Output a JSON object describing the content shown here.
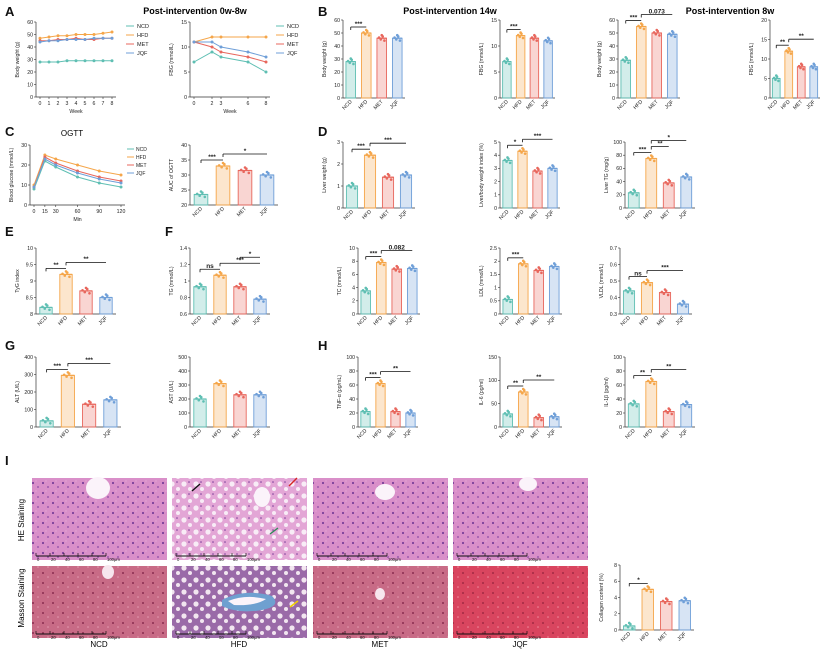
{
  "panel_titles": {
    "A": "Post-intervention 0w-8w",
    "B1": "Post-intervention 14w",
    "B2": "Post-intervention 8w",
    "C": "OGTT"
  },
  "groups": [
    "NCD",
    "HFD",
    "MET",
    "JQF"
  ],
  "colors": {
    "NCD": "#5fbfb3",
    "HFD": "#f5a64a",
    "MET": "#e8675d",
    "JQF": "#6f9fd8"
  },
  "chart_data": [
    {
      "id": "A1",
      "type": "line",
      "panel": "A",
      "xlabel": "Week",
      "ylabel": "Body weight (g)",
      "x": [
        0,
        1,
        2,
        3,
        4,
        5,
        6,
        7,
        8
      ],
      "ylim": [
        0,
        60
      ],
      "yticks": [
        0,
        10,
        20,
        30,
        40,
        50,
        60
      ],
      "series": [
        {
          "name": "NCD",
          "values": [
            28,
            28,
            28,
            29,
            29,
            29,
            29,
            29,
            29
          ]
        },
        {
          "name": "HFD",
          "values": [
            47,
            48,
            49,
            49,
            50,
            50,
            50,
            51,
            52
          ]
        },
        {
          "name": "MET",
          "values": [
            45,
            45,
            46,
            46,
            47,
            46,
            46,
            47,
            47
          ]
        },
        {
          "name": "JQF",
          "values": [
            44,
            45,
            45,
            46,
            46,
            46,
            47,
            47,
            47
          ]
        }
      ]
    },
    {
      "id": "A2",
      "type": "line",
      "panel": "A",
      "xlabel": "Week",
      "ylabel": "FBG (mmol/L)",
      "x": [
        0,
        2,
        3,
        6,
        8
      ],
      "ylim": [
        0,
        15
      ],
      "yticks": [
        0,
        5,
        10,
        15
      ],
      "series": [
        {
          "name": "NCD",
          "values": [
            7,
            9,
            8,
            7,
            5
          ]
        },
        {
          "name": "HFD",
          "values": [
            11,
            12,
            12,
            12,
            12
          ]
        },
        {
          "name": "MET",
          "values": [
            11,
            10,
            9,
            8,
            7
          ]
        },
        {
          "name": "JQF",
          "values": [
            11,
            11,
            10,
            9,
            8
          ]
        }
      ]
    },
    {
      "id": "B1",
      "type": "bar",
      "panel": "B",
      "ylabel": "Body weight (g)",
      "ylim": [
        0,
        60
      ],
      "yticks": [
        0,
        10,
        20,
        30,
        40,
        50,
        60
      ],
      "values": [
        28,
        50,
        46,
        46
      ],
      "sig": [
        {
          "from": 0,
          "to": 1,
          "label": "***"
        }
      ]
    },
    {
      "id": "B2",
      "type": "bar",
      "ylabel": "FBG (mmol/L)",
      "ylim": [
        0,
        15
      ],
      "yticks": [
        0,
        5,
        10,
        15
      ],
      "values": [
        7,
        12,
        11.5,
        11
      ],
      "sig": [
        {
          "from": 0,
          "to": 1,
          "label": "***"
        }
      ]
    },
    {
      "id": "B3",
      "type": "bar",
      "ylabel": "Body weight (g)",
      "ylim": [
        0,
        60
      ],
      "yticks": [
        0,
        10,
        20,
        30,
        40,
        50,
        60
      ],
      "values": [
        29,
        55,
        50,
        49
      ],
      "sig": [
        {
          "from": 0,
          "to": 1,
          "label": "***"
        },
        {
          "from": 1,
          "to": 3,
          "label": "0.073"
        }
      ]
    },
    {
      "id": "B4",
      "type": "bar",
      "ylabel": "FBG (mmol/L)",
      "ylim": [
        0,
        20
      ],
      "yticks": [
        0,
        5,
        10,
        15,
        20
      ],
      "values": [
        5,
        12,
        8,
        8
      ],
      "sig": [
        {
          "from": 0,
          "to": 1,
          "label": "**"
        },
        {
          "from": 1,
          "to": 3,
          "label": "**"
        }
      ]
    },
    {
      "id": "C1",
      "type": "line",
      "panel": "C",
      "xlabel": "Min",
      "ylabel": "Blood glucose (mmol/L)",
      "x": [
        0,
        15,
        30,
        60,
        90,
        120
      ],
      "ylim": [
        0,
        30
      ],
      "yticks": [
        0,
        10,
        20,
        30
      ],
      "series": [
        {
          "name": "NCD",
          "values": [
            8,
            22,
            19,
            14,
            11,
            9
          ]
        },
        {
          "name": "HFD",
          "values": [
            10,
            25,
            23,
            20,
            17,
            15
          ]
        },
        {
          "name": "MET",
          "values": [
            9,
            24,
            21,
            17,
            14,
            12
          ]
        },
        {
          "name": "JQF",
          "values": [
            9,
            23,
            20,
            16,
            13,
            11
          ]
        }
      ]
    },
    {
      "id": "C2",
      "type": "bar",
      "ylabel": "AUC of OGTT",
      "ylim": [
        20,
        40
      ],
      "yticks": [
        20,
        25,
        30,
        35,
        40
      ],
      "values": [
        23.5,
        33,
        31.5,
        30
      ],
      "sig": [
        {
          "from": 0,
          "to": 1,
          "label": "***"
        },
        {
          "from": 1,
          "to": 3,
          "label": "*"
        }
      ]
    },
    {
      "id": "D1",
      "type": "bar",
      "panel": "D",
      "ylabel": "Liver weight (g)",
      "ylim": [
        0,
        3
      ],
      "yticks": [
        0,
        1,
        2,
        3
      ],
      "values": [
        1.0,
        2.4,
        1.4,
        1.5
      ],
      "sig": [
        {
          "from": 0,
          "to": 1,
          "label": "***"
        },
        {
          "from": 1,
          "to": 3,
          "label": "***"
        }
      ]
    },
    {
      "id": "D2",
      "type": "bar",
      "ylabel": "Liver/body weight index (%)",
      "ylim": [
        0,
        5
      ],
      "yticks": [
        0,
        1,
        2,
        3,
        4,
        5
      ],
      "values": [
        3.6,
        4.3,
        2.8,
        3.0
      ],
      "sig": [
        {
          "from": 0,
          "to": 1,
          "label": "*"
        },
        {
          "from": 1,
          "to": 3,
          "label": "***"
        }
      ]
    },
    {
      "id": "D3",
      "type": "bar",
      "ylabel": "Liver TG (mg/g)",
      "ylim": [
        0,
        100
      ],
      "yticks": [
        0,
        20,
        40,
        60,
        80,
        100
      ],
      "values": [
        23,
        75,
        38,
        47
      ],
      "sig": [
        {
          "from": 0,
          "to": 1,
          "label": "***"
        },
        {
          "from": 1,
          "to": 2,
          "label": "**"
        },
        {
          "from": 1,
          "to": 3,
          "label": "*"
        }
      ]
    },
    {
      "id": "E1",
      "type": "bar",
      "panel": "E",
      "ylabel": "TyG index",
      "ylim": [
        8.0,
        10.0
      ],
      "yticks": [
        8.0,
        8.5,
        9.0,
        9.5,
        10.0
      ],
      "values": [
        8.2,
        9.2,
        8.7,
        8.5
      ],
      "sig": [
        {
          "from": 0,
          "to": 1,
          "label": "**"
        },
        {
          "from": 1,
          "to": 3,
          "label": "**"
        }
      ]
    },
    {
      "id": "F1",
      "type": "bar",
      "panel": "F",
      "ylabel": "TG (mmol/L)",
      "ylim": [
        0.6,
        1.4
      ],
      "yticks": [
        0.6,
        0.8,
        1.0,
        1.2,
        1.4
      ],
      "values": [
        0.93,
        1.07,
        0.93,
        0.78
      ],
      "sig": [
        {
          "from": 0,
          "to": 1,
          "label": "ns"
        },
        {
          "from": 1,
          "to": 3,
          "label": "***"
        },
        {
          "from": 2,
          "to": 3,
          "label": "*"
        }
      ]
    },
    {
      "id": "F2",
      "type": "bar",
      "ylabel": "TC (mmol/L)",
      "ylim": [
        0,
        10
      ],
      "yticks": [
        0,
        2,
        4,
        6,
        8,
        10
      ],
      "values": [
        3.5,
        7.8,
        6.8,
        6.9
      ],
      "sig": [
        {
          "from": 0,
          "to": 1,
          "label": "***"
        },
        {
          "from": 1,
          "to": 3,
          "label": "0.082"
        }
      ]
    },
    {
      "id": "F3",
      "type": "bar",
      "ylabel": "LDL (mmol/L)",
      "ylim": [
        0,
        2.5
      ],
      "yticks": [
        0,
        0.5,
        1.0,
        1.5,
        2.0,
        2.5
      ],
      "values": [
        0.55,
        1.9,
        1.65,
        1.8
      ],
      "sig": [
        {
          "from": 0,
          "to": 1,
          "label": "***"
        }
      ]
    },
    {
      "id": "F4",
      "type": "bar",
      "ylabel": "VLDL (mmol/L)",
      "ylim": [
        0.3,
        0.7
      ],
      "yticks": [
        0.3,
        0.4,
        0.5,
        0.6,
        0.7
      ],
      "values": [
        0.44,
        0.49,
        0.43,
        0.36
      ],
      "sig": [
        {
          "from": 0,
          "to": 1,
          "label": "ns"
        },
        {
          "from": 1,
          "to": 3,
          "label": "***"
        }
      ]
    },
    {
      "id": "G1",
      "type": "bar",
      "panel": "G",
      "ylabel": "ALT (U/L)",
      "ylim": [
        0,
        400
      ],
      "yticks": [
        0,
        100,
        200,
        300,
        400
      ],
      "values": [
        35,
        295,
        130,
        155
      ],
      "sig": [
        {
          "from": 0,
          "to": 1,
          "label": "***"
        },
        {
          "from": 1,
          "to": 3,
          "label": "***"
        }
      ]
    },
    {
      "id": "G2",
      "type": "bar",
      "ylabel": "AST (U/L)",
      "ylim": [
        0,
        500
      ],
      "yticks": [
        0,
        100,
        200,
        300,
        400,
        500
      ],
      "values": [
        200,
        310,
        230,
        230
      ],
      "sig": []
    },
    {
      "id": "H1",
      "type": "bar",
      "panel": "H",
      "ylabel": "TNF-α (pg/mL)",
      "ylim": [
        0,
        100
      ],
      "yticks": [
        0,
        20,
        40,
        60,
        80,
        100
      ],
      "values": [
        22,
        62,
        22,
        20
      ],
      "sig": [
        {
          "from": 0,
          "to": 1,
          "label": "***"
        },
        {
          "from": 1,
          "to": 3,
          "label": "**"
        }
      ]
    },
    {
      "id": "H2",
      "type": "bar",
      "ylabel": "IL-6 (pg/ml)",
      "ylim": [
        0,
        150
      ],
      "yticks": [
        0,
        50,
        100,
        150
      ],
      "values": [
        28,
        75,
        20,
        22
      ],
      "sig": [
        {
          "from": 0,
          "to": 1,
          "label": "**"
        },
        {
          "from": 1,
          "to": 3,
          "label": "**"
        }
      ]
    },
    {
      "id": "H3",
      "type": "bar",
      "ylabel": "IL-1β (pg/ml)",
      "ylim": [
        0,
        100
      ],
      "yticks": [
        0,
        20,
        40,
        60,
        80,
        100
      ],
      "values": [
        33,
        65,
        22,
        32
      ],
      "sig": [
        {
          "from": 0,
          "to": 1,
          "label": "**"
        },
        {
          "from": 1,
          "to": 3,
          "label": "**"
        }
      ]
    },
    {
      "id": "I1",
      "type": "bar",
      "panel": "I",
      "ylabel": "Collagen content (%)",
      "ylim": [
        0,
        8
      ],
      "yticks": [
        0,
        2,
        4,
        6,
        8
      ],
      "values": [
        0.5,
        5,
        3.5,
        3.6
      ],
      "sig": [
        {
          "from": 0,
          "to": 1,
          "label": "*"
        }
      ]
    }
  ],
  "histology": {
    "rows": [
      "HE Staining",
      "Masson Staining"
    ],
    "columns": [
      "NCD",
      "HFD",
      "MET",
      "JQF"
    ],
    "scale_ticks": [
      "0",
      "20",
      "40",
      "60",
      "80",
      "100μm"
    ]
  }
}
